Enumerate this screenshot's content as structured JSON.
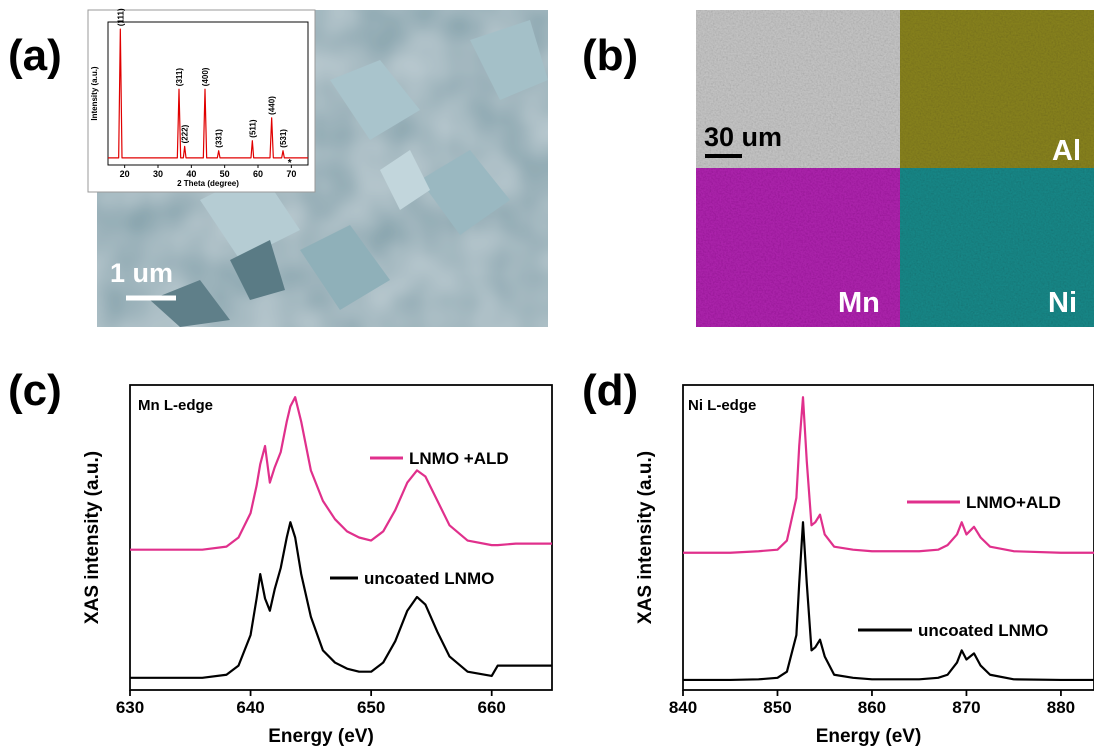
{
  "panel_labels": [
    "(a)",
    "(b)",
    "(c)",
    "(d)"
  ],
  "sem_image": {
    "scale_bar": "1 um"
  },
  "eds_maps": {
    "scale_bar": "30 um",
    "elements": [
      "Al",
      "Mn",
      "Ni"
    ]
  },
  "chart_data": [
    {
      "type": "line",
      "xlabel": "2 Theta (degree)",
      "ylabel": "Intensity (a.u.)",
      "x": [
        15,
        18.2,
        18.7,
        19.2,
        35.8,
        36.3,
        36.8,
        37.6,
        38,
        38.4,
        43.6,
        44.1,
        44.6,
        47.8,
        48.2,
        48.6,
        57.9,
        58.3,
        58.7,
        63.6,
        64.1,
        64.6,
        67.1,
        67.5,
        67.9,
        75
      ],
      "values": [
        0.5,
        0.5,
        9.5,
        0.5,
        0.5,
        5.3,
        0.5,
        0.5,
        1.3,
        0.5,
        0.5,
        5.3,
        0.5,
        0.5,
        1.0,
        0.5,
        0.5,
        1.7,
        0.5,
        0.5,
        3.3,
        0.5,
        0.5,
        1.0,
        0.5,
        0.5
      ],
      "color": "#e00000",
      "annotations": [
        {
          "label": "(111)",
          "x": 18.7
        },
        {
          "label": "(311)",
          "x": 36.3
        },
        {
          "label": "(222)",
          "x": 38
        },
        {
          "label": "(400)",
          "x": 44.1
        },
        {
          "label": "(331)",
          "x": 48.2
        },
        {
          "label": "(511)",
          "x": 58.3
        },
        {
          "label": "(440)",
          "x": 64.1
        },
        {
          "label": "(531)",
          "x": 67.5
        },
        {
          "label": "*",
          "x": 69.5
        }
      ],
      "xlim": [
        15,
        75
      ],
      "xticks": [
        20,
        30,
        40,
        50,
        60,
        70
      ],
      "ylim": [
        0,
        10
      ]
    },
    {
      "type": "line",
      "title": "Mn L-edge",
      "xlabel": "Energy (eV)",
      "ylabel": "XAS intensity (a.u.)",
      "x": [
        630,
        632,
        634,
        636,
        638,
        639,
        640,
        640.5,
        640.8,
        641.2,
        641.6,
        642,
        642.5,
        643,
        643.3,
        643.7,
        644.2,
        645,
        646,
        647,
        648,
        649,
        650,
        651,
        652,
        653,
        653.8,
        654.5,
        655.5,
        656.5,
        658,
        660,
        660.5,
        662,
        665
      ],
      "series": [
        {
          "name": "LNMO +ALD",
          "color": "#e0308c",
          "values": [
            4.6,
            4.6,
            4.6,
            4.6,
            4.7,
            5.0,
            5.8,
            6.7,
            7.4,
            8.0,
            6.8,
            7.3,
            7.8,
            8.8,
            9.3,
            9.6,
            8.8,
            7.2,
            6.2,
            5.6,
            5.2,
            5.0,
            4.9,
            5.2,
            5.9,
            6.8,
            7.2,
            7.0,
            6.2,
            5.4,
            4.9,
            4.75,
            4.75,
            4.8,
            4.8
          ]
        },
        {
          "name": "uncoated LNMO",
          "color": "#000000",
          "values": [
            0.4,
            0.4,
            0.4,
            0.4,
            0.5,
            0.8,
            1.8,
            3.0,
            3.8,
            3.0,
            2.6,
            3.3,
            4.0,
            5.0,
            5.5,
            5.0,
            3.8,
            2.4,
            1.3,
            0.9,
            0.7,
            0.6,
            0.6,
            0.9,
            1.6,
            2.6,
            3.05,
            2.8,
            1.9,
            1.1,
            0.6,
            0.46,
            0.8,
            0.8,
            0.8
          ]
        }
      ],
      "xlim": [
        630,
        665
      ],
      "xticks": [
        630,
        640,
        650,
        660
      ],
      "ylim": [
        0,
        10
      ]
    },
    {
      "type": "line",
      "title": "Ni L-edge",
      "xlabel": "Energy (eV)",
      "ylabel": "XAS intensity (a.u.)",
      "x": [
        840,
        845,
        848,
        850,
        851,
        852,
        852.3,
        852.7,
        853.1,
        853.6,
        854,
        854.5,
        855,
        856,
        858,
        860,
        865,
        867,
        868,
        869,
        869.5,
        870,
        870.8,
        871.5,
        872.5,
        875,
        880,
        883.5
      ],
      "series": [
        {
          "name": "LNMO+ALD",
          "color": "#e0308c",
          "values": [
            4.5,
            4.5,
            4.55,
            4.6,
            4.9,
            6.3,
            8.0,
            9.6,
            7.5,
            5.4,
            5.5,
            5.75,
            5.1,
            4.7,
            4.6,
            4.55,
            4.55,
            4.6,
            4.75,
            5.1,
            5.5,
            5.1,
            5.35,
            5.0,
            4.7,
            4.55,
            4.5,
            4.5
          ]
        },
        {
          "name": "uncoated LNMO",
          "color": "#000000",
          "values": [
            0.33,
            0.33,
            0.35,
            0.4,
            0.6,
            1.8,
            3.5,
            5.5,
            3.5,
            1.3,
            1.4,
            1.65,
            1.1,
            0.5,
            0.4,
            0.35,
            0.35,
            0.4,
            0.5,
            0.9,
            1.3,
            1.0,
            1.2,
            0.8,
            0.5,
            0.35,
            0.33,
            0.33
          ]
        }
      ],
      "xlim": [
        840,
        883.5
      ],
      "xticks": [
        840,
        850,
        860,
        870,
        880
      ],
      "ylim": [
        0,
        10
      ]
    }
  ]
}
